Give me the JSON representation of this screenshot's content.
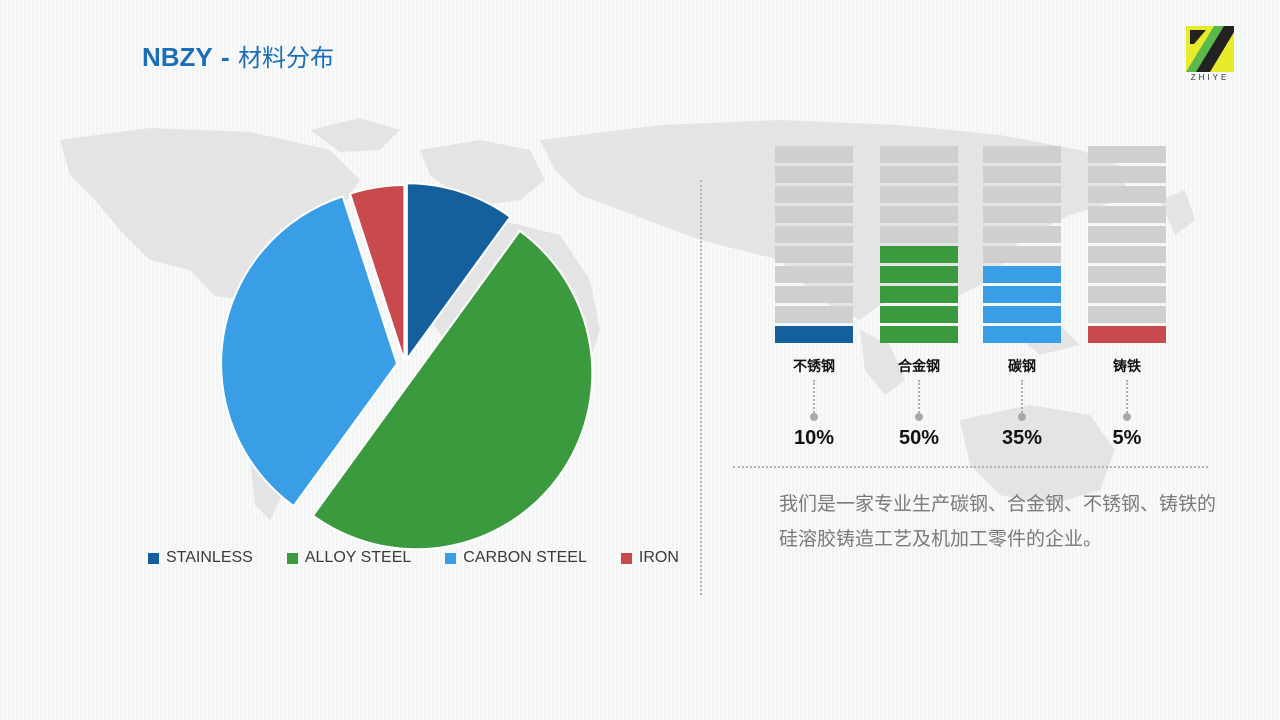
{
  "header": {
    "brand": "NBZY",
    "separator": "-",
    "subtitle": "材料分布"
  },
  "logo": {
    "text": "ZHIYE",
    "colors": {
      "yellow": "#e8ea2c",
      "green": "#5bb84a",
      "dark": "#222222"
    }
  },
  "chart_data": [
    {
      "type": "pie",
      "title": "",
      "categories": [
        "STAINLESS",
        "ALLOY STEEL",
        "CARBON STEEL",
        "IRON"
      ],
      "values": [
        10,
        50,
        35,
        5
      ],
      "colors": [
        "#15609c",
        "#3b9a3e",
        "#3a9ee6",
        "#c94a4d"
      ],
      "legend_position": "bottom"
    },
    {
      "type": "bar",
      "title": "",
      "categories": [
        "不锈钢",
        "合金钢",
        "碳钢",
        "铸铁"
      ],
      "values": [
        10,
        50,
        35,
        5
      ],
      "value_labels": [
        "10%",
        "50%",
        "35%",
        "5%"
      ],
      "ylim": [
        0,
        100
      ],
      "colors": [
        "#15609c",
        "#3b9a3e",
        "#3a9ee6",
        "#c94a4d"
      ],
      "track_color": "#cfcfcf"
    }
  ],
  "description": "我们是一家专业生产碳钢、合金钢、不锈钢、铸铁的硅溶胶铸造工艺及机加工零件的企业。"
}
